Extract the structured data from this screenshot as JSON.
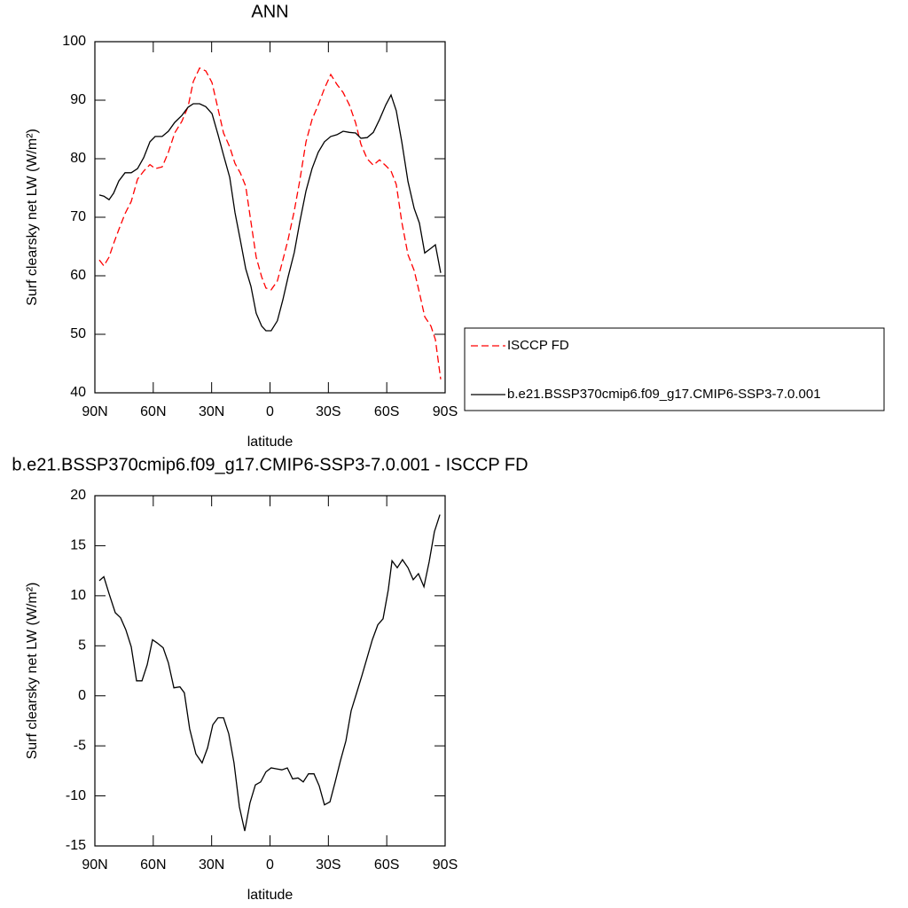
{
  "chart_data": [
    {
      "type": "line",
      "title": "ANN",
      "xlabel": "latitude",
      "ylabel": "Surf clearsky net LW (W/m²)",
      "x": [
        87.7,
        85.4,
        82.7,
        80.4,
        77.7,
        74.5,
        71.3,
        68.1,
        64.9,
        61.7,
        59.0,
        55.4,
        52.2,
        49.0,
        45.3,
        42.1,
        39.4,
        36.2,
        33.0,
        29.8,
        26.7,
        23.9,
        20.7,
        18.0,
        15.3,
        12.5,
        9.8,
        7.1,
        4.3,
        2.1,
        -0.6,
        -3.8,
        -6.6,
        -9.3,
        -12.5,
        -15.3,
        -18.5,
        -21.6,
        -24.8,
        -28.0,
        -31.2,
        -34.4,
        -37.6,
        -40.8,
        -44.0,
        -46.7,
        -49.9,
        -53.1,
        -56.3,
        -59.5,
        -62.2,
        -64.9,
        -67.7,
        -70.9,
        -74.1,
        -76.8,
        -79.5,
        -82.7,
        -85.0,
        -87.7
      ],
      "series": [
        {
          "name": "ISCCP FD",
          "color": "#ff0000",
          "dash": true,
          "values": [
            62.7,
            61.7,
            63.2,
            65.5,
            67.9,
            70.6,
            72.7,
            76.5,
            77.9,
            79.0,
            78.3,
            78.6,
            81.1,
            84.4,
            86.4,
            88.9,
            93.2,
            95.5,
            95.0,
            93.0,
            88.5,
            84.4,
            82.0,
            79.2,
            77.6,
            75.3,
            69.2,
            63.2,
            59.8,
            57.9,
            57.6,
            59.1,
            62.7,
            66.2,
            71.1,
            76.3,
            82.9,
            86.7,
            89.2,
            92.0,
            94.4,
            92.7,
            91.3,
            89.2,
            86.1,
            82.5,
            80.0,
            78.9,
            79.8,
            78.8,
            77.9,
            75.6,
            69.2,
            63.6,
            60.9,
            57.1,
            53.0,
            51.4,
            49.1,
            42.3
          ]
        },
        {
          "name": "b.e21.BSSP370cmip6.f09_g17.CMIP6-SSP3-7.0.001",
          "color": "#000000",
          "dash": false,
          "values": [
            73.8,
            73.6,
            73.0,
            74.1,
            76.2,
            77.6,
            77.6,
            78.3,
            80.2,
            82.9,
            83.8,
            83.8,
            84.7,
            86.2,
            87.4,
            88.8,
            89.4,
            89.4,
            88.9,
            87.7,
            84.1,
            80.6,
            76.8,
            70.8,
            66.2,
            61.2,
            58.2,
            53.6,
            51.4,
            50.6,
            50.6,
            52.3,
            55.9,
            59.8,
            64.0,
            69.2,
            74.5,
            78.3,
            81.1,
            82.9,
            83.8,
            84.1,
            84.7,
            84.5,
            84.4,
            83.5,
            83.6,
            84.5,
            86.7,
            89.2,
            90.9,
            88.2,
            82.9,
            76.1,
            71.5,
            69.0,
            63.9,
            64.7,
            65.3,
            60.5
          ]
        }
      ],
      "xlim": [
        90,
        -90
      ],
      "xticks": [
        {
          "value": 90,
          "label": "90N"
        },
        {
          "value": 60,
          "label": "60N"
        },
        {
          "value": 30,
          "label": "30N"
        },
        0,
        {
          "value": -30,
          "label": "30S"
        },
        {
          "value": -60,
          "label": "60S"
        },
        {
          "value": -90,
          "label": "90S"
        }
      ],
      "ylim": [
        40,
        100
      ],
      "yticks": [
        40,
        50,
        60,
        70,
        80,
        90,
        100
      ],
      "legend": "right"
    },
    {
      "type": "line",
      "title": "b.e21.BSSP370cmip6.f09_g17.CMIP6-SSP3-7.0.001 - ISCCP FD",
      "xlabel": "latitude",
      "ylabel": "Surf clearsky net LW (W/m²)",
      "x": [
        87.7,
        85.4,
        82.7,
        79.5,
        76.8,
        74.1,
        71.3,
        68.6,
        65.8,
        63.1,
        60.4,
        58.1,
        54.9,
        52.2,
        49.4,
        46.3,
        44.0,
        41.3,
        38.1,
        34.9,
        32.1,
        29.4,
        26.7,
        23.9,
        21.2,
        18.5,
        15.7,
        13.0,
        10.3,
        7.5,
        4.8,
        2.1,
        -0.6,
        -3.4,
        -6.1,
        -8.9,
        -11.6,
        -14.4,
        -17.1,
        -19.8,
        -22.6,
        -25.3,
        -28.0,
        -30.8,
        -33.5,
        -36.2,
        -39.0,
        -41.7,
        -44.4,
        -47.2,
        -49.9,
        -52.6,
        -55.4,
        -58.1,
        -60.8,
        -62.7,
        -65.4,
        -68.1,
        -70.9,
        -73.6,
        -76.3,
        -79.1,
        -81.8,
        -84.5,
        -87.3
      ],
      "series": [
        {
          "color": "#000000",
          "dash": false,
          "values": [
            11.5,
            11.9,
            10.2,
            8.3,
            7.8,
            6.6,
            4.9,
            1.5,
            1.5,
            3.1,
            5.6,
            5.3,
            4.8,
            3.3,
            0.8,
            0.9,
            0.3,
            -3.3,
            -5.8,
            -6.7,
            -5.2,
            -2.9,
            -2.2,
            -2.2,
            -3.8,
            -6.7,
            -11.1,
            -13.5,
            -10.7,
            -8.9,
            -8.6,
            -7.6,
            -7.2,
            -7.3,
            -7.4,
            -7.2,
            -8.3,
            -8.2,
            -8.6,
            -7.8,
            -7.8,
            -9.0,
            -10.9,
            -10.6,
            -8.6,
            -6.5,
            -4.5,
            -1.5,
            0.2,
            2.0,
            3.8,
            5.6,
            7.1,
            7.7,
            10.6,
            13.5,
            12.8,
            13.6,
            12.8,
            11.6,
            12.2,
            10.9,
            13.4,
            16.4,
            18.1
          ]
        }
      ],
      "xlim": [
        90,
        -90
      ],
      "xticks": [
        {
          "value": 90,
          "label": "90N"
        },
        {
          "value": 60,
          "label": "60N"
        },
        {
          "value": 30,
          "label": "30N"
        },
        0,
        {
          "value": -30,
          "label": "30S"
        },
        {
          "value": -60,
          "label": "60S"
        },
        {
          "value": -90,
          "label": "90S"
        }
      ],
      "ylim": [
        -15,
        20
      ],
      "yticks": [
        -15,
        -10,
        -5,
        0,
        5,
        10,
        15,
        20
      ]
    }
  ]
}
